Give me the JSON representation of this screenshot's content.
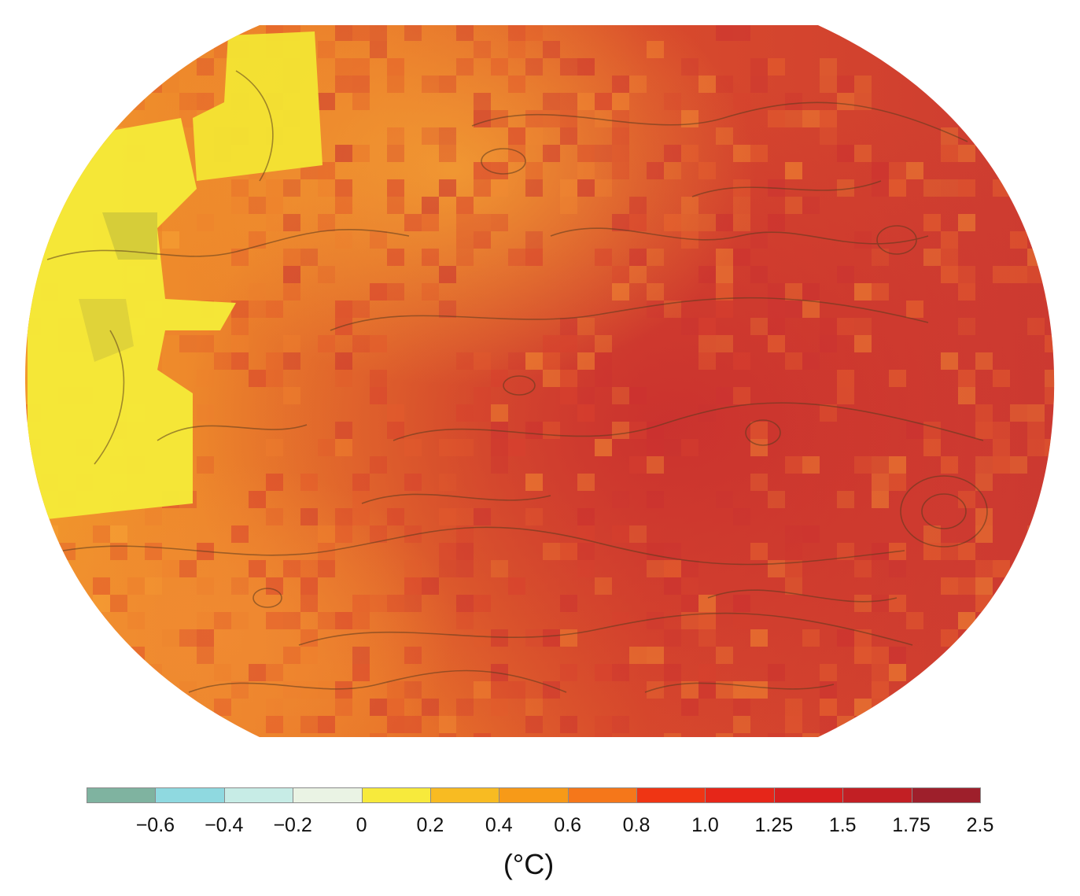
{
  "map": {
    "type": "gridded-temperature-anomaly-map",
    "projection_shape": "rounded-ellipse",
    "legend": {
      "unit": "(°C)",
      "bins": [
        {
          "lower": "",
          "upper": "-0.6",
          "color": "#7fb3a0"
        },
        {
          "lower": "-0.6",
          "upper": "-0.4",
          "color": "#8fd9e0"
        },
        {
          "lower": "-0.4",
          "upper": "-0.2",
          "color": "#c7ece6"
        },
        {
          "lower": "-0.2",
          "upper": "0",
          "color": "#eaf3e4"
        },
        {
          "lower": "0",
          "upper": "0.2",
          "color": "#f7ea3c"
        },
        {
          "lower": "0.2",
          "upper": "0.4",
          "color": "#f8bb22"
        },
        {
          "lower": "0.4",
          "upper": "0.6",
          "color": "#f79a18"
        },
        {
          "lower": "0.6",
          "upper": "0.8",
          "color": "#f5771a"
        },
        {
          "lower": "0.8",
          "upper": "1.0",
          "color": "#ef3514"
        },
        {
          "lower": "1.0",
          "upper": "1.25",
          "color": "#e62619"
        },
        {
          "lower": "1.25",
          "upper": "1.5",
          "color": "#d61f1f"
        },
        {
          "lower": "1.5",
          "upper": "1.75",
          "color": "#c21f24"
        },
        {
          "lower": "1.75",
          "upper": "2.5",
          "color": "#9e1f2b"
        }
      ],
      "tick_labels": [
        "−0.6",
        "−0.4",
        "−0.2",
        "0",
        "0.2",
        "0.4",
        "0.6",
        "0.8",
        "1.0",
        "1.25",
        "1.5",
        "1.75",
        "2.5"
      ]
    }
  }
}
